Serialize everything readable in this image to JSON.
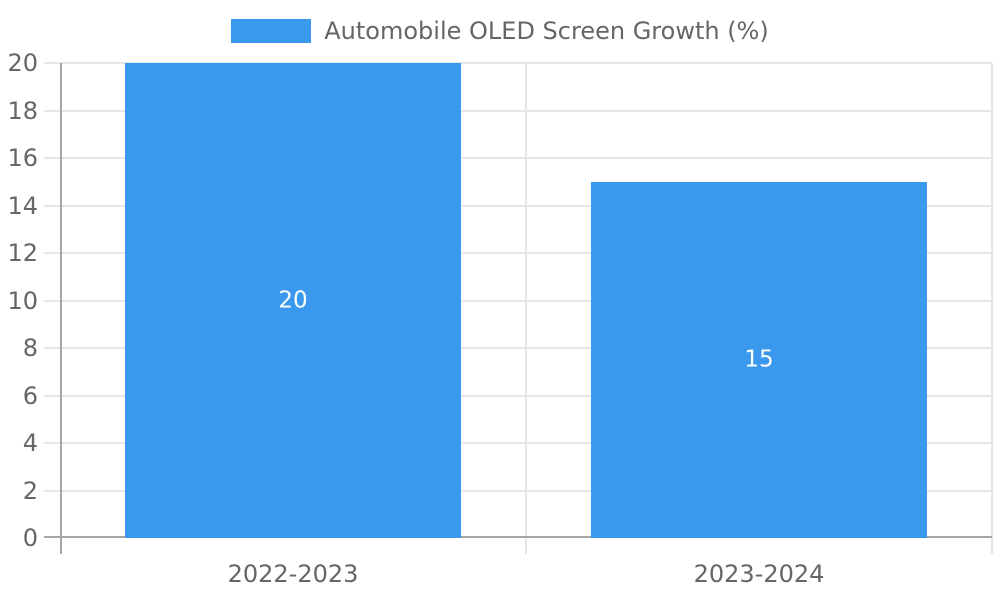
{
  "chart_data": {
    "type": "bar",
    "title": "Automobile OLED Screen Growth (%)",
    "legend": {
      "position": "top",
      "entries": [
        "Automobile OLED Screen Growth (%)"
      ]
    },
    "categories": [
      "2022-2023",
      "2023-2024"
    ],
    "series": [
      {
        "name": "Automobile OLED Screen Growth (%)",
        "values": [
          20,
          15
        ]
      }
    ],
    "bar_value_labels": [
      "20",
      "15"
    ],
    "xlabel": "",
    "ylabel": "",
    "ylim": [
      0,
      20
    ],
    "ytick_step": 2,
    "yticks": [
      0,
      2,
      4,
      6,
      8,
      10,
      12,
      14,
      16,
      18,
      20
    ],
    "grid": true,
    "colors": {
      "bar": "#3a99ec",
      "grid": "#e6e6e6",
      "axis_border": "#a6a6a6",
      "tick_label": "#666666",
      "value_label": "#ffffff",
      "background": "#ffffff"
    }
  }
}
